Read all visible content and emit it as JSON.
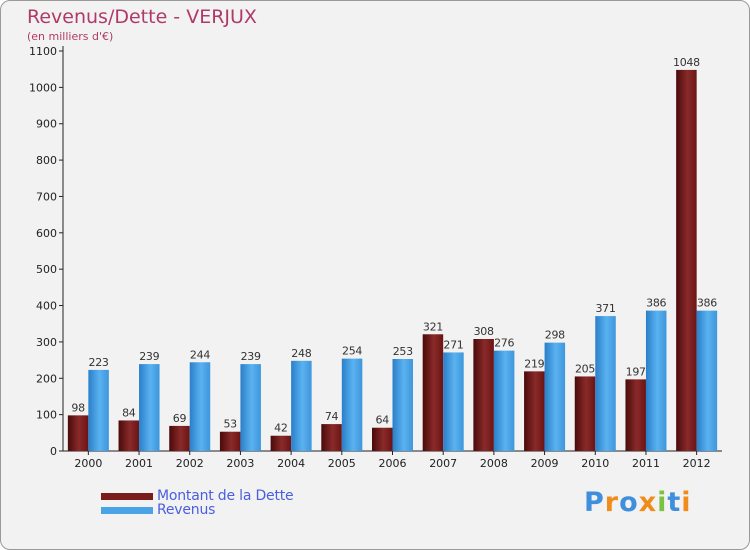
{
  "chart_data": {
    "type": "bar",
    "title": "Revenus/Dette - VERJUX",
    "subtitle": "(en milliers d'€)",
    "xlabel": "",
    "ylabel": "",
    "ylim": [
      0,
      1100
    ],
    "yticks": [
      0,
      100,
      200,
      300,
      400,
      500,
      600,
      700,
      800,
      900,
      1000,
      1100
    ],
    "grid": false,
    "legend_position": "bottom-left",
    "categories": [
      "2000",
      "2001",
      "2002",
      "2003",
      "2004",
      "2005",
      "2006",
      "2007",
      "2008",
      "2009",
      "2010",
      "2011",
      "2012"
    ],
    "series": [
      {
        "name": "Montant de la Dette",
        "color": "#7a1c1c",
        "values": [
          98,
          84,
          69,
          53,
          42,
          74,
          64,
          321,
          308,
          219,
          205,
          197,
          1048
        ]
      },
      {
        "name": "Revenus",
        "color": "#4aa3e6",
        "values": [
          223,
          239,
          244,
          239,
          248,
          254,
          253,
          271,
          276,
          298,
          371,
          386,
          386
        ]
      }
    ]
  },
  "logo": {
    "letters": [
      {
        "ch": "P",
        "color": "#3f8fdc"
      },
      {
        "ch": "r",
        "color": "#f08c1c"
      },
      {
        "ch": "o",
        "color": "#3f8fdc"
      },
      {
        "ch": "x",
        "color": "#f08c1c"
      },
      {
        "ch": "i",
        "color": "#7cc242"
      },
      {
        "ch": "t",
        "color": "#3f8fdc"
      },
      {
        "ch": "i",
        "color": "#f08c1c"
      }
    ]
  }
}
